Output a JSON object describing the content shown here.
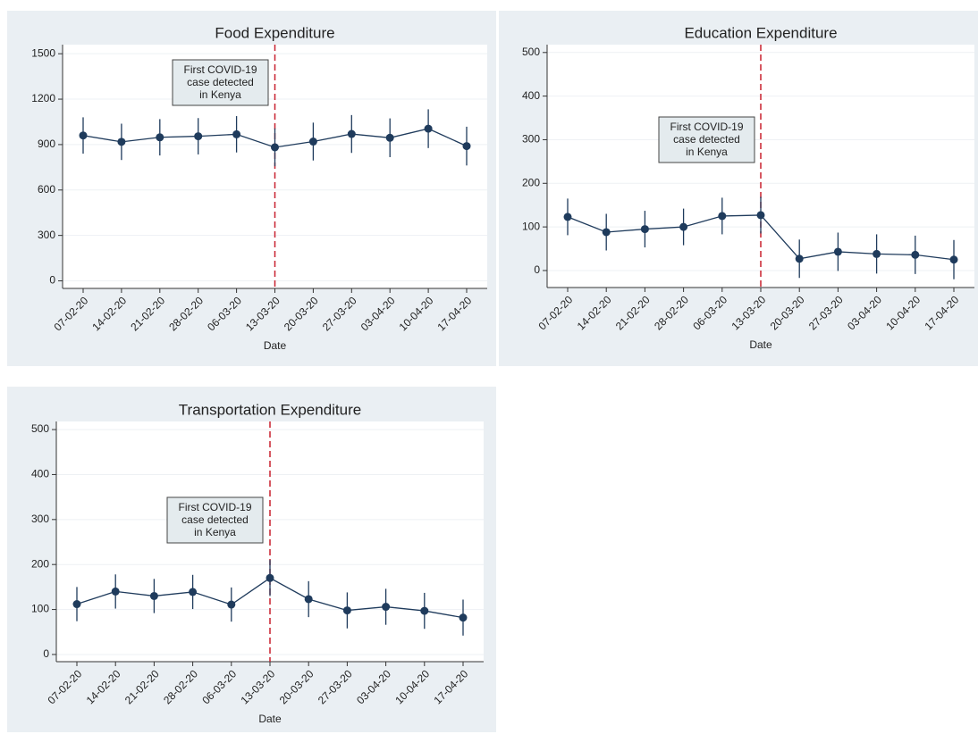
{
  "chart_data": [
    {
      "type": "line",
      "title": "Food Expenditure",
      "xlabel": "Date",
      "categories": [
        "07-02-20",
        "14-02-20",
        "21-02-20",
        "28-02-20",
        "06-03-20",
        "13-03-20",
        "20-03-20",
        "27-03-20",
        "03-04-20",
        "10-04-20",
        "17-04-20"
      ],
      "series": [
        {
          "color": "#1f3b5c",
          "values": [
            960,
            918,
            948,
            955,
            968,
            882,
            920,
            970,
            945,
            1005,
            890
          ],
          "errors": [
            120,
            120,
            120,
            120,
            120,
            125,
            125,
            125,
            128,
            128,
            128
          ]
        }
      ],
      "ylim": [
        -50,
        1560
      ],
      "yticks": [
        0,
        300,
        600,
        900,
        1200,
        1500
      ],
      "grid": true,
      "event": "13-03-20",
      "annotation": [
        "First COVID-19",
        "case detected",
        "in Kenya"
      ]
    },
    {
      "type": "line",
      "title": "Education Expenditure",
      "xlabel": "Date",
      "categories": [
        "07-02-20",
        "14-02-20",
        "21-02-20",
        "28-02-20",
        "06-03-20",
        "13-03-20",
        "20-03-20",
        "27-03-20",
        "03-04-20",
        "10-04-20",
        "17-04-20"
      ],
      "series": [
        {
          "color": "#1f3b5c",
          "values": [
            123,
            88,
            95,
            100,
            125,
            127,
            27,
            43,
            38,
            36,
            25
          ],
          "errors": [
            42,
            42,
            42,
            42,
            42,
            42,
            44,
            44,
            45,
            44,
            45
          ]
        }
      ],
      "ylim": [
        -39,
        518
      ],
      "yticks": [
        0,
        100,
        200,
        300,
        400,
        500
      ],
      "grid": true,
      "event": "13-03-20",
      "annotation": [
        "First COVID-19",
        "case detected",
        "in Kenya"
      ]
    },
    {
      "type": "line",
      "title": "Transportation Expenditure",
      "xlabel": "Date",
      "categories": [
        "07-02-20",
        "14-02-20",
        "21-02-20",
        "28-02-20",
        "06-03-20",
        "13-03-20",
        "20-03-20",
        "27-03-20",
        "03-04-20",
        "10-04-20",
        "17-04-20"
      ],
      "series": [
        {
          "color": "#1f3b5c",
          "values": [
            112,
            140,
            130,
            139,
            111,
            170,
            123,
            98,
            106,
            97,
            82
          ],
          "errors": [
            38,
            38,
            38,
            38,
            38,
            40,
            40,
            40,
            40,
            40,
            40
          ]
        }
      ],
      "ylim": [
        -16,
        518
      ],
      "yticks": [
        0,
        100,
        200,
        300,
        400,
        500
      ],
      "grid": true,
      "event": "13-03-20",
      "annotation": [
        "First COVID-19",
        "case detected",
        "in Kenya"
      ]
    }
  ]
}
